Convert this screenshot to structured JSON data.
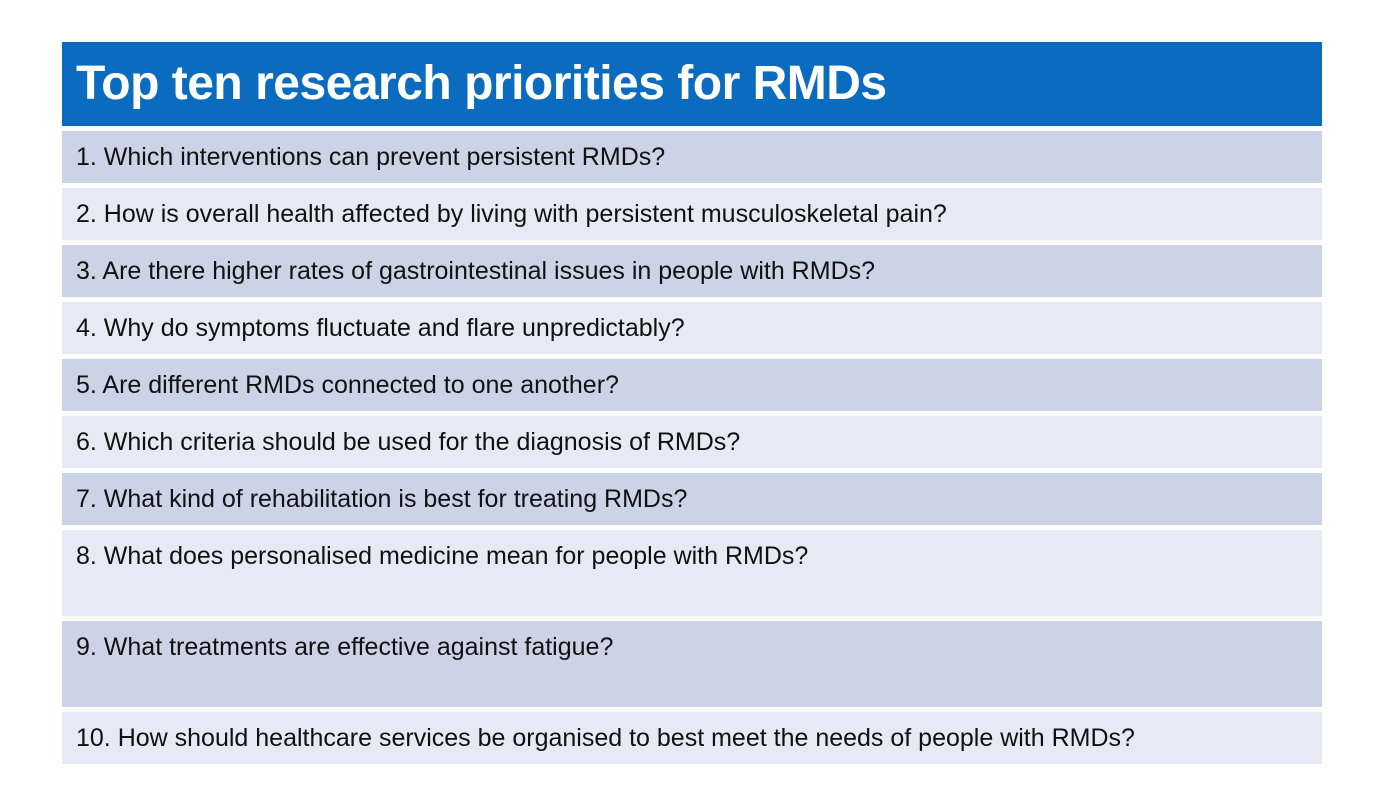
{
  "title": "Top ten research priorities for RMDs",
  "colors": {
    "header_bg": "#0b6cbf",
    "header_text": "#ffffff",
    "row_dark": "#ccd3e6",
    "row_light": "#e7e9f4",
    "row_text": "#111111",
    "page_bg": "#ffffff"
  },
  "rows": [
    "1. Which interventions can prevent persistent RMDs?",
    "2. How is overall health affected by living with persistent musculoskeletal pain?",
    "3. Are there higher rates of gastrointestinal issues in people with RMDs?",
    "4. Why do symptoms fluctuate and flare unpredictably?",
    "5. Are different RMDs connected to one another?",
    "6. Which criteria should be used for the diagnosis of RMDs?",
    "7. What kind of rehabilitation is best for treating RMDs?",
    "8. What does personalised medicine mean for people with RMDs?",
    "9. What treatments are effective against fatigue?",
    "10. How should healthcare services be organised to best meet the needs of people with RMDs?"
  ]
}
